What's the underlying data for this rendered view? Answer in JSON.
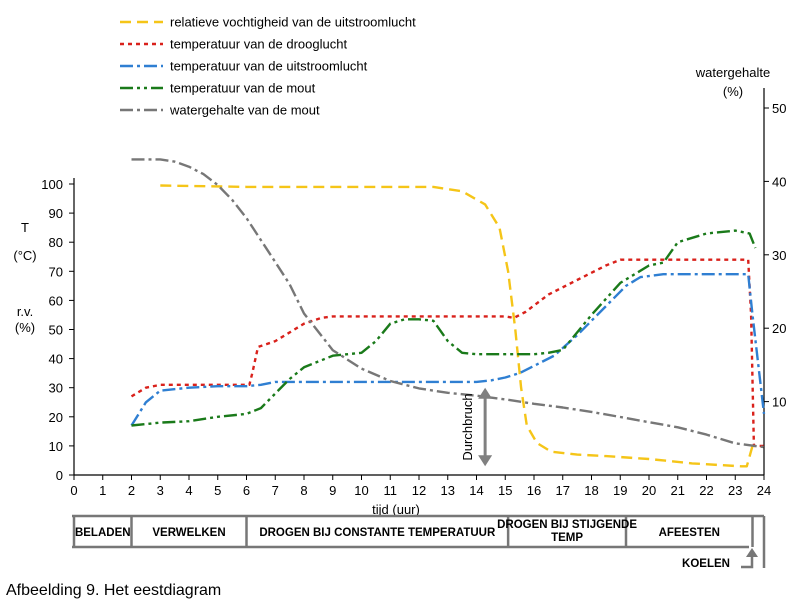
{
  "caption": "Afbeelding 9.  Het eestdiagram",
  "chart_data": {
    "type": "line",
    "xlabel": "tijd (uur)",
    "xlim": [
      0,
      24
    ],
    "x_ticks": [
      "0",
      "1",
      "2",
      "3",
      "4",
      "5",
      "6",
      "7",
      "8",
      "9",
      "10",
      "11",
      "12",
      "13",
      "14",
      "15",
      "16",
      "17",
      "18",
      "19",
      "20",
      "21",
      "22",
      "23",
      "24"
    ],
    "left_axis": {
      "label_lines": [
        "T",
        "(°C)",
        "r.v.",
        "(%)"
      ],
      "ylim": [
        0,
        100
      ],
      "ticks": [
        "0",
        "10",
        "20",
        "30",
        "40",
        "50",
        "60",
        "70",
        "80",
        "90",
        "100"
      ]
    },
    "right_axis": {
      "label_lines": [
        "watergehalte",
        "(%)"
      ],
      "ylim": [
        0,
        50
      ],
      "ticks": [
        "10",
        "20",
        "30",
        "40",
        "50"
      ]
    },
    "legend_position": "top",
    "series": [
      {
        "name": "relatieve vochtigheid van de uitstroomlucht",
        "axis": "left",
        "color": "#f5c518",
        "dash": "11,6",
        "x": [
          3,
          6,
          10,
          12.5,
          13.5,
          14.3,
          14.8,
          15.1,
          15.35,
          15.55,
          15.75,
          16.1,
          16.6,
          17.5,
          18.5,
          20,
          21.5,
          23.2,
          23.4,
          23.6
        ],
        "y": [
          99.5,
          99,
          99,
          99,
          97.5,
          93,
          85,
          70,
          50,
          30,
          17,
          11,
          8,
          7,
          6.5,
          5.5,
          4,
          3,
          3,
          10
        ]
      },
      {
        "name": "temperatuur van de drooglucht",
        "axis": "left",
        "color": "#d9211b",
        "dash": "4,4",
        "x": [
          2,
          2.5,
          3,
          4,
          5,
          6.1,
          6.2,
          6.4,
          7,
          8,
          8.6,
          9,
          10,
          12,
          14,
          15,
          15.3,
          15.7,
          16.5,
          17.5,
          18.5,
          19,
          20,
          21,
          22,
          23,
          23.45,
          23.55,
          23.65,
          24
        ],
        "y": [
          27,
          30,
          31,
          31,
          31,
          31,
          35,
          44,
          46,
          52,
          54,
          54.5,
          54.5,
          54.5,
          54.5,
          54.5,
          54,
          56,
          62,
          67,
          72,
          74,
          74,
          74,
          74,
          74,
          74,
          55,
          10,
          10
        ]
      },
      {
        "name": "temperatuur van de uitstroomlucht",
        "axis": "left",
        "color": "#2f7fd2",
        "dash": "13,4,3,4",
        "x": [
          2,
          2.5,
          3,
          4,
          5,
          6,
          6.5,
          7,
          8,
          9,
          10,
          12,
          13,
          14,
          14.5,
          15,
          15.5,
          16,
          16.7,
          17.5,
          18.5,
          19.2,
          19.7,
          20.5,
          21.5,
          22.5,
          23,
          23.45,
          23.6,
          24
        ],
        "y": [
          17,
          25,
          29,
          30,
          30.5,
          30.5,
          31,
          32,
          32,
          32,
          32,
          32,
          32,
          32,
          32.5,
          33.5,
          35,
          37.5,
          41,
          48,
          58,
          65,
          68,
          69,
          69,
          69,
          69,
          69,
          55,
          21
        ]
      },
      {
        "name": "temperatuur van de mout",
        "axis": "left",
        "color": "#1a7a1a",
        "dash": "13,4,3,4,3,4",
        "x": [
          2,
          2.5,
          3,
          4,
          5,
          6,
          6.5,
          7,
          7.5,
          8,
          9,
          10,
          10.5,
          11,
          11.5,
          12,
          12.5,
          13,
          13.5,
          14,
          15,
          16,
          16.5,
          17,
          18,
          19,
          20,
          20.5,
          21,
          22,
          23,
          23.5,
          23.7
        ],
        "y": [
          17,
          17.5,
          18,
          18.5,
          20,
          21,
          23,
          28,
          33,
          37,
          41,
          42,
          46,
          52,
          53.5,
          53.5,
          53,
          46,
          42,
          41.5,
          41.5,
          41.5,
          42,
          43,
          55,
          66,
          72,
          73,
          80,
          83,
          84,
          83,
          78
        ]
      },
      {
        "name": "watergehalte van de mout",
        "axis": "right",
        "color": "#777777",
        "dash": "13,4,3,4",
        "x": [
          2,
          2.5,
          3,
          3.5,
          4,
          4.5,
          5,
          5.5,
          6,
          7,
          7.5,
          8,
          9,
          10,
          11,
          12,
          13,
          14,
          15,
          16,
          17,
          18,
          19,
          20,
          21,
          22,
          23,
          24
        ],
        "y": [
          43,
          43,
          43,
          42.7,
          42,
          41,
          39.5,
          37.5,
          35,
          29,
          26,
          22,
          17,
          14.5,
          12.8,
          11.8,
          11.2,
          10.8,
          10.3,
          9.7,
          9.2,
          8.6,
          7.9,
          7.2,
          6.5,
          5.5,
          4.3,
          3.8
        ]
      }
    ],
    "annotation": {
      "label": "Durchbruch",
      "x": 14.3,
      "y_from": 3,
      "y_to": 30,
      "color": "#808080"
    },
    "phases": [
      {
        "label": "BELADEN",
        "x_start": 0,
        "x_end": 2
      },
      {
        "label": "VERWELKEN",
        "x_start": 2,
        "x_end": 6
      },
      {
        "label": "DROGEN BIJ CONSTANTE TEMPERATUUR",
        "x_start": 6,
        "x_end": 15.1
      },
      {
        "label": "DROGEN BIJ STIJGENDE TEMP",
        "x_start": 15.1,
        "x_end": 19.2
      },
      {
        "label": "AFEESTEN",
        "x_start": 19.2,
        "x_end": 23.6
      },
      {
        "label": "KOELEN",
        "x_start": 23.6,
        "x_end": 24
      }
    ]
  }
}
